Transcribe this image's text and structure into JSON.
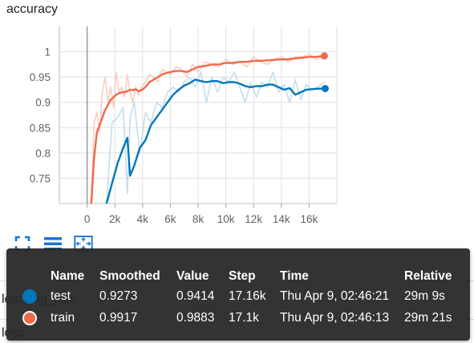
{
  "card": {
    "title": "accuracy"
  },
  "other_sections": [
    {
      "label": "learning_rate"
    },
    {
      "label": "loss"
    }
  ],
  "toolbar": {
    "buttons": [
      {
        "icon": "fullscreen-icon"
      },
      {
        "icon": "data-table-icon"
      },
      {
        "icon": "fit-domain-icon"
      }
    ]
  },
  "tooltip": {
    "headers": {
      "name": "Name",
      "smoothed": "Smoothed",
      "value": "Value",
      "step": "Step",
      "time": "Time",
      "relative": "Relative"
    },
    "rows": [
      {
        "name": "test",
        "color": "#0077bb",
        "smoothed": "0.9273",
        "value": "0.9414",
        "step": "17.16k",
        "time": "Thu Apr 9, 02:46:21",
        "relative": "29m 9s"
      },
      {
        "name": "train",
        "color": "#ee6a4b",
        "smoothed": "0.9917",
        "value": "0.9883",
        "step": "17.1k",
        "time": "Thu Apr 9, 02:46:13",
        "relative": "29m 21s"
      }
    ]
  },
  "chart_data": {
    "type": "line",
    "xlim": [
      -2000,
      18000
    ],
    "ylim": [
      0.7,
      1.05
    ],
    "x_ticks": [
      0,
      2000,
      4000,
      6000,
      8000,
      10000,
      12000,
      14000,
      16000
    ],
    "x_tick_labels": [
      "0",
      "2k",
      "4k",
      "6k",
      "8k",
      "10k",
      "12k",
      "14k",
      "16k"
    ],
    "y_ticks": [
      0.75,
      0.8,
      0.85,
      0.9,
      0.95,
      1
    ],
    "y_tick_labels": [
      "0.75",
      "0.8",
      "0.85",
      "0.9",
      "0.95",
      "1"
    ],
    "grid": true,
    "series": [
      {
        "name": "train",
        "color": "#ee6a4b",
        "raw_color": "#f9c6b7",
        "x": [
          300,
          500,
          700,
          900,
          1100,
          1300,
          1500,
          1700,
          1900,
          2100,
          2300,
          2500,
          2700,
          2900,
          3100,
          3300,
          3500,
          3700,
          3900,
          4200,
          4500,
          4800,
          5100,
          5400,
          5700,
          6000,
          6400,
          6800,
          7200,
          7600,
          8000,
          8500,
          9000,
          9500,
          10000,
          10500,
          11000,
          11500,
          12000,
          12500,
          13000,
          13500,
          14000,
          14500,
          15000,
          15500,
          16000,
          16500,
          17100
        ],
        "smoothed": [
          0.7,
          0.79,
          0.84,
          0.855,
          0.87,
          0.885,
          0.895,
          0.905,
          0.91,
          0.915,
          0.918,
          0.92,
          0.92,
          0.922,
          0.925,
          0.924,
          0.926,
          0.922,
          0.924,
          0.93,
          0.94,
          0.945,
          0.95,
          0.955,
          0.958,
          0.96,
          0.962,
          0.962,
          0.96,
          0.965,
          0.97,
          0.972,
          0.975,
          0.975,
          0.978,
          0.978,
          0.98,
          0.98,
          0.982,
          0.982,
          0.983,
          0.984,
          0.985,
          0.985,
          0.987,
          0.988,
          0.99,
          0.99,
          0.9917
        ],
        "raw": [
          0.7,
          0.86,
          0.88,
          0.84,
          0.92,
          0.95,
          0.9,
          0.93,
          0.89,
          0.96,
          0.92,
          0.93,
          0.91,
          0.955,
          0.92,
          0.9,
          0.93,
          0.915,
          0.93,
          0.94,
          0.955,
          0.95,
          0.94,
          0.965,
          0.96,
          0.955,
          0.97,
          0.965,
          0.95,
          0.975,
          0.96,
          0.98,
          0.975,
          0.97,
          0.985,
          0.975,
          0.98,
          0.97,
          0.99,
          0.98,
          0.975,
          0.985,
          0.99,
          0.98,
          0.99,
          0.99,
          0.995,
          0.985,
          0.9883
        ]
      },
      {
        "name": "test",
        "color": "#0077bb",
        "raw_color": "#b9d9ea",
        "x": [
          1400,
          1800,
          2200,
          2600,
          2900,
          3100,
          3400,
          3800,
          4200,
          4600,
          5000,
          5400,
          5800,
          6200,
          6600,
          7000,
          7400,
          7800,
          8200,
          8600,
          9000,
          9400,
          9800,
          10200,
          10600,
          11000,
          11400,
          11800,
          12200,
          12600,
          13000,
          13400,
          13800,
          14200,
          14600,
          15000,
          15400,
          15800,
          16200,
          16600,
          17160
        ],
        "smoothed": [
          0.7,
          0.74,
          0.78,
          0.81,
          0.83,
          0.755,
          0.775,
          0.81,
          0.825,
          0.855,
          0.87,
          0.885,
          0.9,
          0.915,
          0.925,
          0.933,
          0.938,
          0.945,
          0.942,
          0.94,
          0.942,
          0.942,
          0.938,
          0.94,
          0.94,
          0.937,
          0.932,
          0.93,
          0.932,
          0.932,
          0.935,
          0.935,
          0.93,
          0.925,
          0.928,
          0.915,
          0.92,
          0.925,
          0.926,
          0.927,
          0.9273
        ],
        "raw": [
          0.7,
          0.86,
          0.87,
          0.89,
          0.72,
          0.87,
          0.9,
          0.8,
          0.88,
          0.86,
          0.9,
          0.89,
          0.92,
          0.93,
          0.92,
          0.94,
          0.95,
          0.93,
          0.96,
          0.9,
          0.95,
          0.92,
          0.95,
          0.94,
          0.96,
          0.93,
          0.9,
          0.94,
          0.91,
          0.94,
          0.93,
          0.96,
          0.92,
          0.935,
          0.9,
          0.945,
          0.905,
          0.935,
          0.925,
          0.93,
          0.9414
        ]
      }
    ]
  }
}
